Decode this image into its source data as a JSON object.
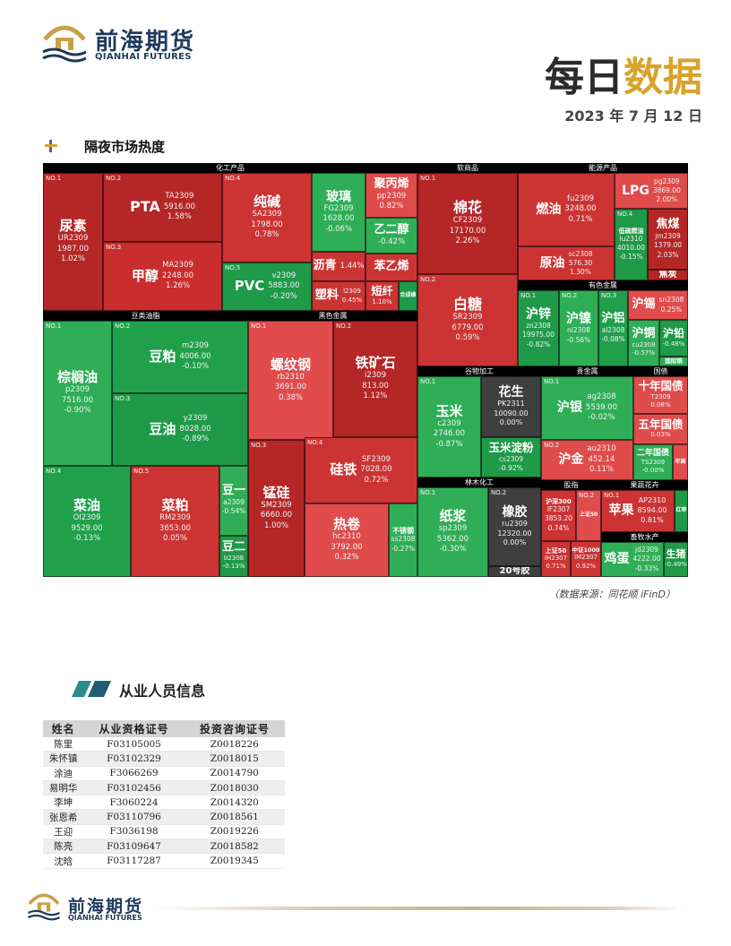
{
  "header": {
    "logo_cn": "前海期货",
    "logo_en": "QIANHAI FUTURES",
    "title_a": "每日",
    "title_b": "数据",
    "date": "2023 年 7 月 12 日"
  },
  "section1": {
    "title": "隔夜市场热度"
  },
  "sectors": {
    "chem": "化工产品",
    "soft": "软商品",
    "energy": "能源产品",
    "metal": "有色金属",
    "oil": "豆类油脂",
    "ferrous": "黑色金属",
    "grain": "谷物加工",
    "precious": "贵金属",
    "bond": "国债",
    "wood": "林木化工",
    "index": "股指",
    "fruit": "果蔬花卉",
    "livestock": "畜牧水产"
  },
  "tiles": {
    "niaosu": {
      "no": "NO.1",
      "name": "尿素",
      "code": "UR2309",
      "price": "1987.00",
      "chg": "1.02%"
    },
    "pta": {
      "no": "NO.2",
      "name": "PTA",
      "code": "TA2309",
      "price": "5916.00",
      "chg": "1.58%"
    },
    "jiachun": {
      "no": "NO.3",
      "name": "甲醇",
      "code": "MA2309",
      "price": "2248.00",
      "chg": "1.26%"
    },
    "chunjian": {
      "no": "NO.4",
      "name": "纯碱",
      "code": "SA2309",
      "price": "1798.00",
      "chg": "0.78%"
    },
    "pvc": {
      "no": "NO.5",
      "name": "PVC",
      "code": "v2309",
      "price": "5883.00",
      "chg": "-0.20%"
    },
    "boli": {
      "name": "玻璃",
      "code": "FG2309",
      "price": "1628.00",
      "chg": "-0.06%"
    },
    "jubingxi": {
      "name": "聚丙烯",
      "code": "pp2309",
      "chg": "0.82%"
    },
    "yierchun": {
      "name": "乙二醇",
      "chg": "-0.42%"
    },
    "liqing": {
      "name": "沥青",
      "chg": "1.44%"
    },
    "benyixi": {
      "name": "苯乙烯"
    },
    "suliao": {
      "name": "塑料",
      "code": "l2309",
      "chg": "0.45%"
    },
    "duanxian": {
      "name": "短纤",
      "chg": "1.10%"
    },
    "zaxiangjiao": {
      "name": "合成橡"
    },
    "mianhua": {
      "no": "NO.1",
      "name": "棉花",
      "code": "CF2309",
      "price": "17170.00",
      "chg": "2.26%"
    },
    "baitang": {
      "no": "NO.2",
      "name": "白糖",
      "code": "SR2309",
      "price": "6779.00",
      "chg": "0.59%"
    },
    "ranyou": {
      "name": "燃油",
      "code": "fu2309",
      "price": "3248.00",
      "chg": "0.71%"
    },
    "lpg": {
      "name": "LPG",
      "code": "pg2309",
      "price": "3869.00",
      "chg": "2.00%"
    },
    "yuanyou": {
      "name": "原油",
      "code": "sc2308",
      "price": "576.30",
      "chg": "1.30%"
    },
    "dilvranyou": {
      "no": "NO.4",
      "name": "低硫燃油",
      "code": "lu2310",
      "price": "4010.00",
      "chg": "-0.15%"
    },
    "jiaomei": {
      "name": "焦煤",
      "code": "jm2309",
      "price": "1379.00",
      "chg": "2.03%"
    },
    "jiaotan": {
      "name": "焦炭"
    },
    "huxin": {
      "no": "NO.1",
      "name": "沪锌",
      "code": "zn2308",
      "price": "19975.00",
      "chg": "-0.82%"
    },
    "hunie": {
      "no": "NO.2",
      "name": "沪镍",
      "code": "ni2308",
      "chg": "-0.56%"
    },
    "hulv": {
      "no": "NO.3",
      "name": "沪铝",
      "code": "al2308",
      "chg": "-0.08%"
    },
    "huxi": {
      "name": "沪锡",
      "code": "sn2308",
      "chg": "0.25%"
    },
    "hutong": {
      "name": "沪铜",
      "code": "cu2308",
      "chg": "-0.57%"
    },
    "huqian": {
      "name": "沪铅",
      "chg": "-0.48%"
    },
    "guojitong": {
      "name": "国际铜"
    },
    "zonglvyou": {
      "no": "NO.1",
      "name": "棕榈油",
      "code": "p2309",
      "price": "7516.00",
      "chg": "-0.90%"
    },
    "doupo": {
      "no": "NO.2",
      "name": "豆粕",
      "code": "m2309",
      "price": "4006.00",
      "chg": "-0.10%"
    },
    "douyou": {
      "no": "NO.3",
      "name": "豆油",
      "code": "y2309",
      "price": "8028.00",
      "chg": "-0.89%"
    },
    "caiyou": {
      "no": "NO.4",
      "name": "菜油",
      "code": "OI2309",
      "price": "9529.00",
      "chg": "-0.13%"
    },
    "caipo": {
      "no": "NO.5",
      "name": "菜粕",
      "code": "RM2309",
      "price": "3653.00",
      "chg": "0.05%"
    },
    "douyi": {
      "name": "豆一",
      "code": "a2309",
      "chg": "-0.54%"
    },
    "douer": {
      "name": "豆二",
      "code": "b2308",
      "chg": "-0.13%"
    },
    "luowengang": {
      "no": "NO.1",
      "name": "螺纹钢",
      "code": "rb2310",
      "price": "3691.00",
      "chg": "0.38%"
    },
    "tiekuangshi": {
      "no": "NO.2",
      "name": "铁矿石",
      "code": "i2309",
      "price": "813.00",
      "chg": "1.12%"
    },
    "menggui": {
      "no": "NO.3",
      "name": "锰硅",
      "code": "SM2309",
      "price": "6660.00",
      "chg": "1.00%"
    },
    "guitie": {
      "no": "NO.4",
      "name": "硅铁",
      "code": "SF2309",
      "price": "7028.00",
      "chg": "0.72%"
    },
    "rejuan": {
      "name": "热卷",
      "code": "hc2310",
      "price": "3792.00",
      "chg": "0.32%"
    },
    "buxiugang": {
      "name": "不锈钢",
      "code": "ss2308",
      "chg": "-0.27%"
    },
    "yumi": {
      "no": "NO.1",
      "name": "玉米",
      "code": "c2309",
      "price": "2746.00",
      "chg": "-0.87%"
    },
    "huasheng": {
      "name": "花生",
      "code": "PK2311",
      "price": "10090.00",
      "chg": "0.00%"
    },
    "yumidianfen": {
      "name": "玉米淀粉",
      "code": "cs2309",
      "chg": "-0.92%"
    },
    "huyin": {
      "no": "NO.1",
      "name": "沪银",
      "code": "ag2308",
      "price": "5539.00",
      "chg": "-0.02%"
    },
    "hujin": {
      "no": "NO.2",
      "name": "沪金",
      "code": "au2310",
      "price": "452.14",
      "chg": "0.11%"
    },
    "shinianguozhai": {
      "name": "十年国债",
      "code": "T2309",
      "chg": "0.08%"
    },
    "wunianguozhai": {
      "name": "五年国债",
      "chg": "0.03%"
    },
    "ernianguozhai": {
      "name": "二年国债",
      "code": "TS2309",
      "chg": "-0.00%"
    },
    "niandu": {
      "name": "年国"
    },
    "zhijiang": {
      "no": "NO.1",
      "name": "纸浆",
      "code": "sp2309",
      "price": "5362.00",
      "chg": "-0.30%"
    },
    "xiangjiao": {
      "no": "NO.2",
      "name": "橡胶",
      "code": "ru2309",
      "price": "12320.00",
      "chg": "0.00%"
    },
    "ershihao": {
      "name": "20号胶"
    },
    "husheng300": {
      "name": "沪深300",
      "code": "IF2307",
      "price": "3853.20",
      "chg": "0.74%"
    },
    "zhengzheng50": {
      "no": "NO.2",
      "name": "上证50"
    },
    "shangzheng50": {
      "name": "上证50",
      "code": "IH2307",
      "chg": "0.71%"
    },
    "zhongzheng1000": {
      "name": "中证1000",
      "code": "IM2307",
      "chg": "0.92%"
    },
    "pingguo": {
      "no": "NO.1",
      "name": "苹果",
      "code": "AP2310",
      "price": "8594.00",
      "chg": "0.81%"
    },
    "hongzao": {
      "name": "红枣"
    },
    "jidan": {
      "name": "鸡蛋",
      "code": "jd2309",
      "price": "4222.00",
      "chg": "-0.33%"
    },
    "shengzhu": {
      "name": "生猪",
      "chg": "-0.49%"
    }
  },
  "source": "（数据来源：同花顺 iFinD）",
  "section2": {
    "title": "从业人员信息"
  },
  "staff": {
    "headers": [
      "姓名",
      "从业资格证号",
      "投资咨询证号"
    ],
    "rows": [
      [
        "陈里",
        "F03105005",
        "Z0018226"
      ],
      [
        "朱怀镇",
        "F03102329",
        "Z0018015"
      ],
      [
        "涂迪",
        "F3066269",
        "Z0014790"
      ],
      [
        "易明华",
        "F03102456",
        "Z0018030"
      ],
      [
        "李坤",
        "F3060224",
        "Z0014320"
      ],
      [
        "张恩希",
        "F03110796",
        "Z0018561"
      ],
      [
        "王迎",
        "F3036198",
        "Z0019226"
      ],
      [
        "陈亮",
        "F03109647",
        "Z0018582"
      ],
      [
        "沈晗",
        "F03117287",
        "Z0019345"
      ]
    ]
  },
  "footer": {
    "logo_cn": "前海期货",
    "logo_en": "QIANHAI FUTURES"
  },
  "colors": {
    "brand_navy": "#1e3a5c",
    "gold": "#d9a22a",
    "up_red": "#cc3434",
    "down_green": "#21a04c"
  }
}
